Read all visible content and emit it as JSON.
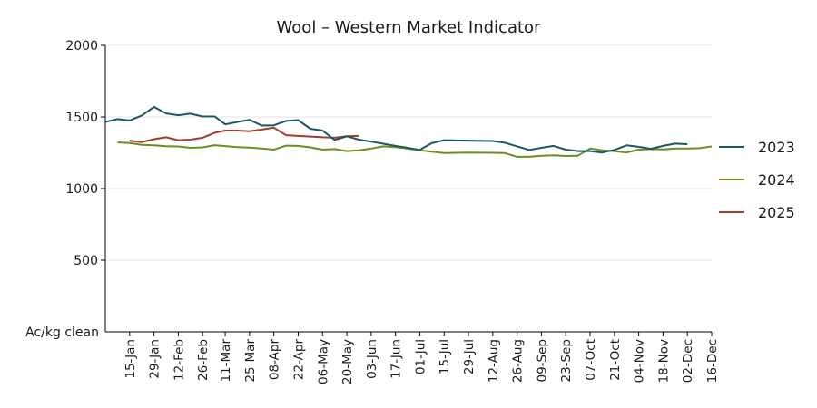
{
  "chart_data": {
    "type": "line",
    "title": "Wool – Western Market Indicator",
    "ylabel": "Ac/kg clean",
    "xlabel": "",
    "ylim": [
      0,
      2000
    ],
    "yticks": [
      500,
      1000,
      1500,
      2000
    ],
    "ytick_labels": [
      "500",
      "1000",
      "1500",
      "2000"
    ],
    "grid": true,
    "legend": "right",
    "x_tick_labels": [
      "15-Jan",
      "29-Jan",
      "12-Feb",
      "26-Feb",
      "11-Mar",
      "25-Mar",
      "08-Apr",
      "22-Apr",
      "06-May",
      "20-May",
      "03-Jun",
      "17-Jun",
      "01-Jul",
      "15-Jul",
      "29-Jul",
      "12-Aug",
      "26-Aug",
      "09-Sep",
      "23-Sep",
      "07-Oct",
      "21-Oct",
      "04-Nov",
      "18-Nov",
      "02-Dec",
      "16-Dec"
    ],
    "series": [
      {
        "name": "2023",
        "color": "#1d5666",
        "x": [
          "01-Jan",
          "08-Jan",
          "15-Jan",
          "22-Jan",
          "29-Jan",
          "05-Feb",
          "12-Feb",
          "19-Feb",
          "26-Feb",
          "05-Mar",
          "11-Mar",
          "18-Mar",
          "25-Mar",
          "01-Apr",
          "08-Apr",
          "15-Apr",
          "22-Apr",
          "29-Apr",
          "06-May",
          "13-May",
          "20-May",
          "27-May",
          "03-Jun",
          "10-Jun",
          "17-Jun",
          "24-Jun",
          "01-Jul",
          "08-Jul",
          "15-Jul",
          "29-Jul",
          "12-Aug",
          "19-Aug",
          "26-Aug",
          "02-Sep",
          "09-Sep",
          "16-Sep",
          "23-Sep",
          "30-Sep",
          "07-Oct",
          "14-Oct",
          "21-Oct",
          "28-Oct",
          "04-Nov",
          "11-Nov",
          "18-Nov",
          "25-Nov",
          "02-Dec"
        ],
        "values": [
          1465,
          1485,
          1475,
          1510,
          1570,
          1525,
          1512,
          1523,
          1503,
          1503,
          1448,
          1465,
          1480,
          1440,
          1442,
          1472,
          1478,
          1418,
          1405,
          1340,
          1365,
          1342,
          1328,
          1313,
          1298,
          1285,
          1270,
          1318,
          1338,
          1335,
          1332,
          1320,
          1295,
          1270,
          1285,
          1298,
          1272,
          1262,
          1262,
          1252,
          1270,
          1302,
          1292,
          1278,
          1298,
          1314,
          1310
        ]
      },
      {
        "name": "2024",
        "color": "#6b8e23",
        "x": [
          "08-Jan",
          "15-Jan",
          "22-Jan",
          "29-Jan",
          "05-Feb",
          "12-Feb",
          "19-Feb",
          "26-Feb",
          "05-Mar",
          "11-Mar",
          "18-Mar",
          "25-Mar",
          "01-Apr",
          "08-Apr",
          "15-Apr",
          "22-Apr",
          "29-Apr",
          "06-May",
          "13-May",
          "20-May",
          "27-May",
          "03-Jun",
          "10-Jun",
          "17-Jun",
          "24-Jun",
          "01-Jul",
          "08-Jul",
          "15-Jul",
          "22-Jul",
          "29-Jul",
          "12-Aug",
          "19-Aug",
          "26-Aug",
          "02-Sep",
          "09-Sep",
          "16-Sep",
          "23-Sep",
          "30-Sep",
          "07-Oct",
          "14-Oct",
          "21-Oct",
          "28-Oct",
          "04-Nov",
          "11-Nov",
          "18-Nov",
          "25-Nov",
          "02-Dec",
          "09-Dec",
          "16-Dec"
        ],
        "values": [
          1323,
          1318,
          1305,
          1302,
          1296,
          1294,
          1285,
          1288,
          1303,
          1297,
          1290,
          1286,
          1280,
          1272,
          1300,
          1298,
          1288,
          1272,
          1276,
          1262,
          1268,
          1280,
          1295,
          1290,
          1280,
          1268,
          1258,
          1248,
          1250,
          1252,
          1250,
          1248,
          1222,
          1222,
          1230,
          1233,
          1228,
          1230,
          1280,
          1268,
          1262,
          1252,
          1272,
          1276,
          1274,
          1280,
          1280,
          1282,
          1294
        ]
      },
      {
        "name": "2025",
        "color": "#a0402c",
        "x": [
          "15-Jan",
          "22-Jan",
          "29-Jan",
          "05-Feb",
          "12-Feb",
          "19-Feb",
          "26-Feb",
          "05-Mar",
          "11-Mar",
          "18-Mar",
          "25-Mar",
          "01-Apr",
          "08-Apr",
          "15-Apr",
          "22-Apr",
          "29-Apr",
          "06-May",
          "13-May",
          "20-May",
          "27-May"
        ],
        "values": [
          1335,
          1325,
          1345,
          1358,
          1338,
          1342,
          1355,
          1390,
          1405,
          1405,
          1400,
          1412,
          1425,
          1373,
          1368,
          1363,
          1358,
          1355,
          1365,
          1368
        ]
      }
    ]
  }
}
